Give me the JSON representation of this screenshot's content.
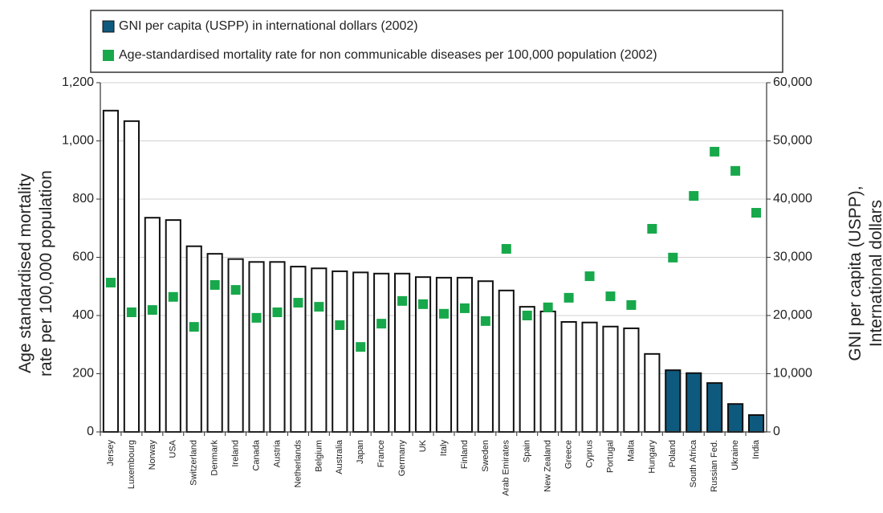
{
  "chart_data": {
    "type": "bar_scatter",
    "categories": [
      "Jersey",
      "Luxembourg",
      "Norway",
      "USA",
      "Switzerland",
      "Denmark",
      "Ireland",
      "Canada",
      "Austria",
      "Netherlands",
      "Belgium",
      "Australia",
      "Japan",
      "France",
      "Germany",
      "UK",
      "Italy",
      "Finland",
      "Sweden",
      "Arab Emirates",
      "Spain",
      "New Zealand",
      "Greece",
      "Cyprus",
      "Portugal",
      "Malta",
      "Hungary",
      "Poland",
      "South Africa",
      "Russian Fed.",
      "Ukraine",
      "India"
    ],
    "series": [
      {
        "name": "GNI per capita (USPP) in international dollars (2002)",
        "color": "#0e5a7e",
        "axis": "y2",
        "mark": "bar",
        "values": [
          55200,
          53400,
          36800,
          36400,
          31900,
          30600,
          29700,
          29200,
          29200,
          28400,
          28100,
          27600,
          27400,
          27200,
          27200,
          26600,
          26500,
          26500,
          25900,
          24300,
          21500,
          20700,
          18900,
          18800,
          18100,
          17800,
          13400,
          10600,
          10100,
          8400,
          4800,
          2900
        ],
        "colors": [
          "#ffffff",
          "#ffffff",
          "#ffffff",
          "#ffffff",
          "#ffffff",
          "#ffffff",
          "#ffffff",
          "#ffffff",
          "#ffffff",
          "#ffffff",
          "#ffffff",
          "#ffffff",
          "#ffffff",
          "#ffffff",
          "#ffffff",
          "#ffffff",
          "#ffffff",
          "#ffffff",
          "#ffffff",
          "#ffffff",
          "#ffffff",
          "#ffffff",
          "#ffffff",
          "#ffffff",
          "#ffffff",
          "#ffffff",
          "#ffffff",
          "#0e5a7e",
          "#0e5a7e",
          "#0e5a7e",
          "#0e5a7e",
          "#0e5a7e"
        ]
      },
      {
        "name": "Age-standardised mortality rate for non communicable diseases per 100,000 population (2002)",
        "color": "#17a84b",
        "axis": "y",
        "mark": "square",
        "values": [
          513,
          411,
          419,
          464,
          361,
          505,
          488,
          392,
          411,
          444,
          430,
          367,
          292,
          372,
          450,
          439,
          406,
          425,
          381,
          629,
          400,
          428,
          461,
          535,
          466,
          436,
          698,
          599,
          811,
          963,
          897,
          753
        ]
      }
    ],
    "y_label": [
      "Age standardised mortality",
      "rate per 100,000 population"
    ],
    "y2_label": [
      "GNI per capita (USPP),",
      "International dollars"
    ],
    "ylim": [
      0,
      1200
    ],
    "yticks": [
      0,
      200,
      400,
      600,
      800,
      {
        "value": 1000,
        "label": "1,000"
      },
      {
        "value": 1200,
        "label": "1,200"
      }
    ],
    "y2lim": [
      0,
      60000
    ],
    "y2ticks": [
      0,
      {
        "value": 10000,
        "label": "10,000"
      },
      {
        "value": 20000,
        "label": "20,000"
      },
      {
        "value": 30000,
        "label": "30,000"
      },
      {
        "value": 40000,
        "label": "40,000"
      },
      {
        "value": 50000,
        "label": "50,000"
      },
      {
        "value": 60000,
        "label": "60,000"
      }
    ],
    "grid": true
  }
}
